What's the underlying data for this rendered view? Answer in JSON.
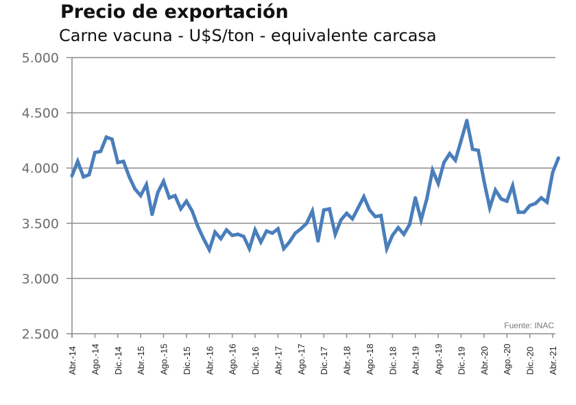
{
  "chart_data": {
    "type": "line",
    "title": "Precio de exportación",
    "subtitle": "Carne vacuna - U$S/ton - equivalente carcasa",
    "xlabel": "",
    "ylabel": "",
    "ylim": [
      2500,
      5000
    ],
    "yticks": [
      "5.000",
      "4.500",
      "4.000",
      "3.500",
      "3.000",
      "2.500"
    ],
    "ytick_values": [
      5000,
      4500,
      4000,
      3500,
      3000,
      2500
    ],
    "xtick_labels": [
      "Abr.-14",
      "Ago.-14",
      "Dic.-14",
      "Abr.-15",
      "Ago.-15",
      "Dic.-15",
      "Abr.-16",
      "Ago.-16",
      "Dic.-16",
      "Abr.-17",
      "Ago.-17",
      "Dic.-17",
      "Abr.-18",
      "Ago.-18",
      "Dic.-18",
      "Abr.-19",
      "Ago.-19",
      "Dic.-19",
      "Abr.-20",
      "Ago.-20",
      "Dic.-20",
      "Abr.-21"
    ],
    "grid": true,
    "source": "Fuente: INAC",
    "line_color": "#4a7ebb",
    "series": [
      {
        "name": "Precio de exportación",
        "values": [
          3930,
          4060,
          3920,
          3940,
          4140,
          4150,
          4280,
          4260,
          4050,
          4060,
          3920,
          3810,
          3750,
          3850,
          3580,
          3780,
          3880,
          3730,
          3750,
          3630,
          3700,
          3610,
          3470,
          3360,
          3260,
          3420,
          3360,
          3440,
          3390,
          3400,
          3380,
          3270,
          3440,
          3330,
          3430,
          3410,
          3450,
          3270,
          3330,
          3410,
          3450,
          3500,
          3610,
          3340,
          3620,
          3630,
          3400,
          3530,
          3590,
          3540,
          3640,
          3740,
          3620,
          3560,
          3570,
          3270,
          3390,
          3460,
          3400,
          3490,
          3730,
          3530,
          3720,
          3980,
          3860,
          4050,
          4130,
          4070,
          4250,
          4430,
          4170,
          4160,
          3880,
          3640,
          3800,
          3720,
          3700,
          3840,
          3600,
          3600,
          3660,
          3680,
          3730,
          3690,
          3960,
          4090
        ]
      }
    ]
  }
}
